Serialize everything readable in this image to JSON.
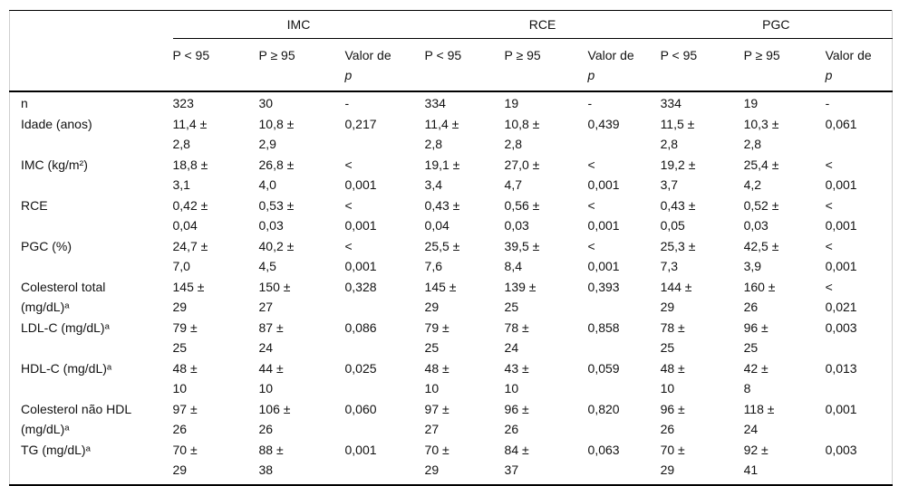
{
  "page": {
    "background": "#ffffff",
    "text_color": "#121212",
    "rule_color": "#000000",
    "faint_rule_color": "#cfcfcf"
  },
  "table": {
    "groups": [
      {
        "label": "IMC"
      },
      {
        "label": "RCE"
      },
      {
        "label": "PGC"
      }
    ],
    "subheader": {
      "p_lt": "P < 95",
      "p_ge": "P ≥ 95",
      "valor_line1": "Valor de",
      "valor_line2": "p"
    },
    "rows": [
      {
        "label": "n",
        "values": [
          "323",
          "30",
          "-",
          "334",
          "19",
          "-",
          "334",
          "19",
          "-"
        ]
      },
      {
        "label": "Idade (anos)",
        "values": [
          "11,4 ±\n2,8",
          "10,8 ±\n2,9",
          "0,217",
          "11,4 ±\n2,8",
          "10,8 ±\n2,8",
          "0,439",
          "11,5 ±\n2,8",
          "10,3 ±\n2,8",
          "0,061"
        ]
      },
      {
        "label": "IMC (kg/m²)",
        "values": [
          "18,8 ±\n3,1",
          "26,8 ±\n4,0",
          "<\n0,001",
          "19,1 ±\n3,4",
          "27,0 ±\n4,7",
          "<\n0,001",
          "19,2 ±\n3,7",
          "25,4 ±\n4,2",
          "<\n0,001"
        ]
      },
      {
        "label": "RCE",
        "values": [
          "0,42 ±\n0,04",
          "0,53 ±\n0,03",
          "<\n0,001",
          "0,43 ±\n0,04",
          "0,56 ±\n0,03",
          "<\n0,001",
          "0,43 ±\n0,05",
          "0,52 ±\n0,03",
          "<\n0,001"
        ]
      },
      {
        "label": "PGC (%)",
        "values": [
          "24,7 ±\n7,0",
          "40,2 ±\n4,5",
          "<\n0,001",
          "25,5 ±\n7,6",
          "39,5 ±\n8,4",
          "<\n0,001",
          "25,3 ±\n7,3",
          "42,5 ±\n3,9",
          "<\n0,001"
        ]
      },
      {
        "label": "Colesterol total\n(mg/dL)ᵃ",
        "values": [
          "145 ±\n29",
          "150 ±\n27",
          "0,328",
          "145 ±\n29",
          "139 ±\n25",
          "0,393",
          "144 ±\n29",
          "160 ±\n26",
          "<\n0,021"
        ]
      },
      {
        "label": "LDL-C (mg/dL)ᵃ",
        "values": [
          "79 ±\n25",
          "87 ±\n24",
          "0,086",
          "79 ±\n25",
          "78 ±\n24",
          "0,858",
          "78 ±\n25",
          "96 ±\n25",
          "0,003"
        ]
      },
      {
        "label": "HDL-C (mg/dL)ᵃ",
        "values": [
          "48 ±\n10",
          "44 ±\n10",
          "0,025",
          "48 ±\n10",
          "43 ±\n10",
          "0,059",
          "48 ±\n10",
          "42 ±\n8",
          "0,013"
        ]
      },
      {
        "label": "Colesterol não HDL\n(mg/dL)ᵃ",
        "values": [
          "97 ±\n26",
          "106 ±\n26",
          "0,060",
          "97 ±\n27",
          "96 ±\n26",
          "0,820",
          "96 ±\n26",
          "118 ±\n24",
          "0,001"
        ]
      },
      {
        "label": "TG (mg/dL)ᵃ",
        "values": [
          "70 ±\n29",
          "88 ±\n38",
          "0,001",
          "70 ±\n29",
          "84 ±\n37",
          "0,063",
          "70 ±\n29",
          "92 ±\n41",
          "0,003"
        ]
      }
    ]
  }
}
